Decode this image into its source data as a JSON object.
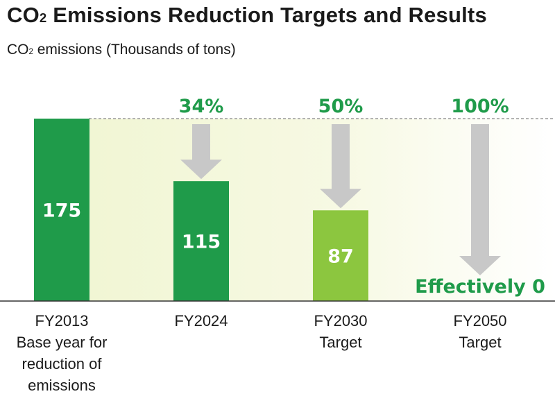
{
  "chart_data": {
    "type": "bar",
    "title": {
      "prefix": "CO",
      "subscript": "2",
      "suffix": " Emissions Reduction Targets and Results"
    },
    "ylabel": {
      "prefix": "CO",
      "subscript": "2",
      "suffix": " emissions (Thousands of tons)"
    },
    "ylim": [
      0,
      175
    ],
    "categories": [
      {
        "lines": [
          "FY2013",
          "Base year for",
          "reduction of",
          "emissions"
        ]
      },
      {
        "lines": [
          "FY2024"
        ]
      },
      {
        "lines": [
          "FY2030",
          "Target"
        ]
      },
      {
        "lines": [
          "FY2050",
          "Target"
        ]
      }
    ],
    "values": [
      175,
      115,
      87,
      0
    ],
    "value_labels": [
      "175",
      "115",
      "87",
      "Effectively 0"
    ],
    "reduction_labels": [
      "",
      "34%",
      "50%",
      "100%"
    ],
    "bar_colors": [
      "#1f9b4a",
      "#1f9b4a",
      "#8cc63f",
      "#ffffff"
    ],
    "arrow_color": "#c8c8c8",
    "accent_color": "#1f9b4a",
    "grid": false,
    "baseline_reference": "dashed line at base year value"
  }
}
